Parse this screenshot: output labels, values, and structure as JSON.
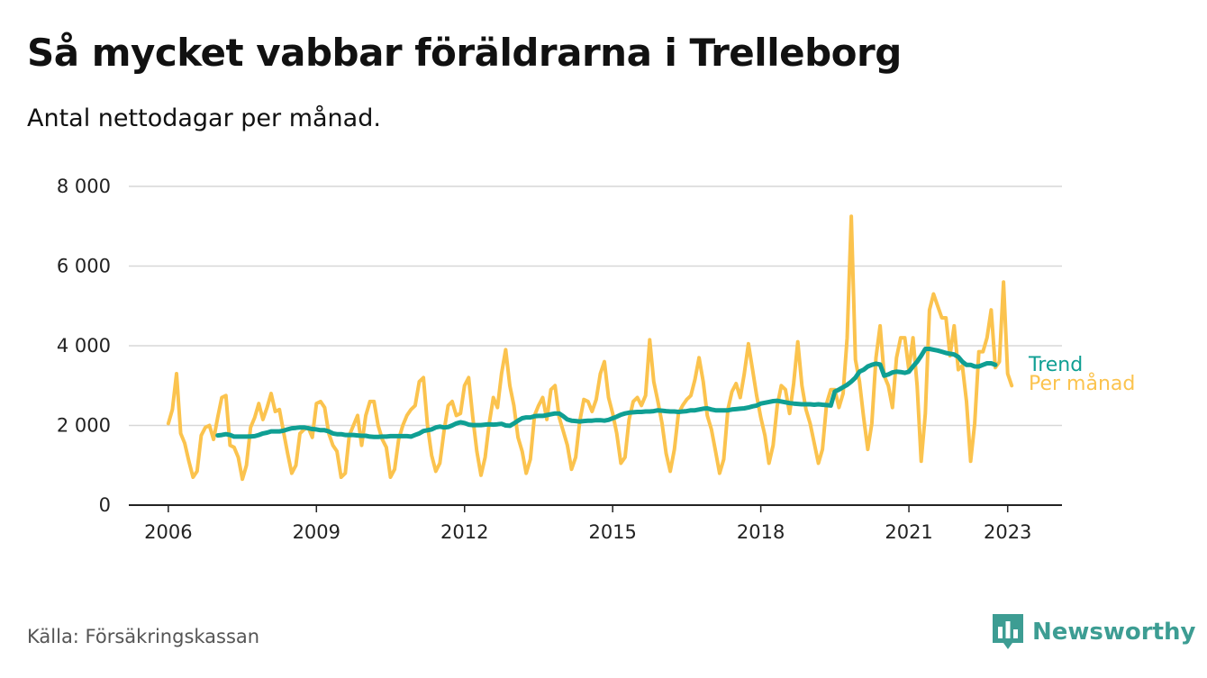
{
  "header": {
    "title": "Så mycket vabbar föräldrarna i Trelleborg",
    "subtitle": "Antal nettodagar per månad."
  },
  "footer": {
    "source": "Källa: Försäkringskassan",
    "brand": "Newsworthy",
    "brand_icon": "bar-chart-speech-bubble-icon"
  },
  "colors": {
    "per_month": "#fbc34e",
    "trend": "#0f9f93",
    "grid": "#d7d7d7",
    "axis": "#222222",
    "brand": "#3d9d93"
  },
  "chart_data": {
    "type": "line",
    "x_unit": "decimal year",
    "ylim": [
      0,
      8000
    ],
    "yticks": [
      0,
      2000,
      4000,
      6000,
      8000
    ],
    "ytick_labels": [
      "0",
      "2 000",
      "4 000",
      "6 000",
      "8 000"
    ],
    "xticks": [
      2006,
      2009,
      2012,
      2015,
      2018,
      2021,
      2023
    ],
    "xtick_labels": [
      "2006",
      "2009",
      "2012",
      "2015",
      "2018",
      "2021",
      "2023"
    ],
    "xlim": [
      2005.2,
      2024.1
    ],
    "grid": "horizontal",
    "legend": "inline at line ends",
    "series": [
      {
        "name": "Per månad",
        "key": "per_month",
        "start": 2006.0,
        "step": 0.08333,
        "values": [
          2050,
          2400,
          3300,
          1800,
          1550,
          1100,
          700,
          850,
          1750,
          1950,
          2000,
          1650,
          2200,
          2700,
          2750,
          1500,
          1450,
          1200,
          650,
          1000,
          1950,
          2200,
          2550,
          2150,
          2450,
          2800,
          2350,
          2400,
          1850,
          1300,
          800,
          1000,
          1800,
          1900,
          1950,
          1700,
          2550,
          2600,
          2450,
          1800,
          1500,
          1350,
          700,
          800,
          1750,
          2000,
          2250,
          1500,
          2250,
          2600,
          2600,
          2000,
          1650,
          1450,
          700,
          900,
          1650,
          2000,
          2250,
          2400,
          2500,
          3100,
          3200,
          2000,
          1250,
          850,
          1050,
          1850,
          2500,
          2600,
          2250,
          2300,
          3000,
          3200,
          2200,
          1350,
          750,
          1200,
          2050,
          2700,
          2450,
          3300,
          3900,
          3000,
          2500,
          1700,
          1350,
          800,
          1150,
          2250,
          2500,
          2700,
          2150,
          2900,
          3000,
          2200,
          1850,
          1500,
          900,
          1200,
          2100,
          2650,
          2600,
          2350,
          2650,
          3300,
          3600,
          2700,
          2300,
          1800,
          1050,
          1200,
          2150,
          2600,
          2700,
          2500,
          2750,
          4150,
          3100,
          2600,
          2050,
          1300,
          850,
          1400,
          2300,
          2500,
          2650,
          2750,
          3150,
          3700,
          3100,
          2250,
          1900,
          1350,
          800,
          1150,
          2400,
          2850,
          3050,
          2700,
          3300,
          4050,
          3400,
          2750,
          2200,
          1750,
          1050,
          1500,
          2500,
          3000,
          2900,
          2300,
          3050,
          4100,
          3000,
          2400,
          2050,
          1550,
          1050,
          1400,
          2550,
          2900,
          2900,
          2450,
          2800,
          4200,
          7250,
          3650,
          3100,
          2200,
          1400,
          2050,
          3700,
          4500,
          3250,
          3000,
          2450,
          3700,
          4200,
          4200,
          3400,
          4200,
          3000,
          1100,
          2300,
          4900,
          5300,
          5000,
          4700,
          4700,
          3750,
          4500,
          3400,
          3500,
          2600,
          1100,
          2050,
          3850,
          3850,
          4200,
          4900,
          3450,
          3600,
          5600,
          3300,
          3000
        ]
      },
      {
        "name": "Trend",
        "key": "trend",
        "start": 2007.0,
        "step": 0.08333,
        "values": [
          1750,
          1760,
          1780,
          1760,
          1720,
          1720,
          1720,
          1720,
          1725,
          1730,
          1760,
          1800,
          1820,
          1850,
          1850,
          1850,
          1870,
          1900,
          1930,
          1940,
          1950,
          1950,
          1930,
          1910,
          1900,
          1880,
          1880,
          1850,
          1800,
          1780,
          1780,
          1760,
          1760,
          1760,
          1750,
          1740,
          1740,
          1720,
          1710,
          1710,
          1720,
          1720,
          1730,
          1730,
          1730,
          1730,
          1730,
          1720,
          1760,
          1800,
          1860,
          1880,
          1900,
          1950,
          1970,
          1950,
          1960,
          2000,
          2050,
          2080,
          2060,
          2020,
          2010,
          2010,
          2010,
          2020,
          2030,
          2020,
          2030,
          2040,
          2000,
          1990,
          2050,
          2120,
          2180,
          2200,
          2200,
          2230,
          2240,
          2240,
          2260,
          2280,
          2300,
          2300,
          2230,
          2150,
          2120,
          2110,
          2100,
          2110,
          2120,
          2120,
          2130,
          2130,
          2120,
          2140,
          2180,
          2220,
          2270,
          2300,
          2320,
          2330,
          2340,
          2340,
          2350,
          2350,
          2360,
          2380,
          2370,
          2360,
          2350,
          2350,
          2340,
          2350,
          2360,
          2380,
          2380,
          2400,
          2420,
          2430,
          2400,
          2380,
          2380,
          2380,
          2380,
          2400,
          2410,
          2420,
          2430,
          2450,
          2480,
          2500,
          2550,
          2570,
          2590,
          2610,
          2620,
          2600,
          2580,
          2560,
          2550,
          2540,
          2530,
          2530,
          2530,
          2520,
          2530,
          2520,
          2510,
          2500,
          2850,
          2900,
          2960,
          3020,
          3100,
          3200,
          3350,
          3400,
          3480,
          3520,
          3550,
          3530,
          3250,
          3280,
          3330,
          3350,
          3340,
          3320,
          3350,
          3480,
          3600,
          3750,
          3920,
          3920,
          3900,
          3880,
          3850,
          3820,
          3800,
          3780,
          3720,
          3600,
          3520,
          3520,
          3480,
          3480,
          3520,
          3560,
          3560,
          3520
        ]
      }
    ]
  }
}
